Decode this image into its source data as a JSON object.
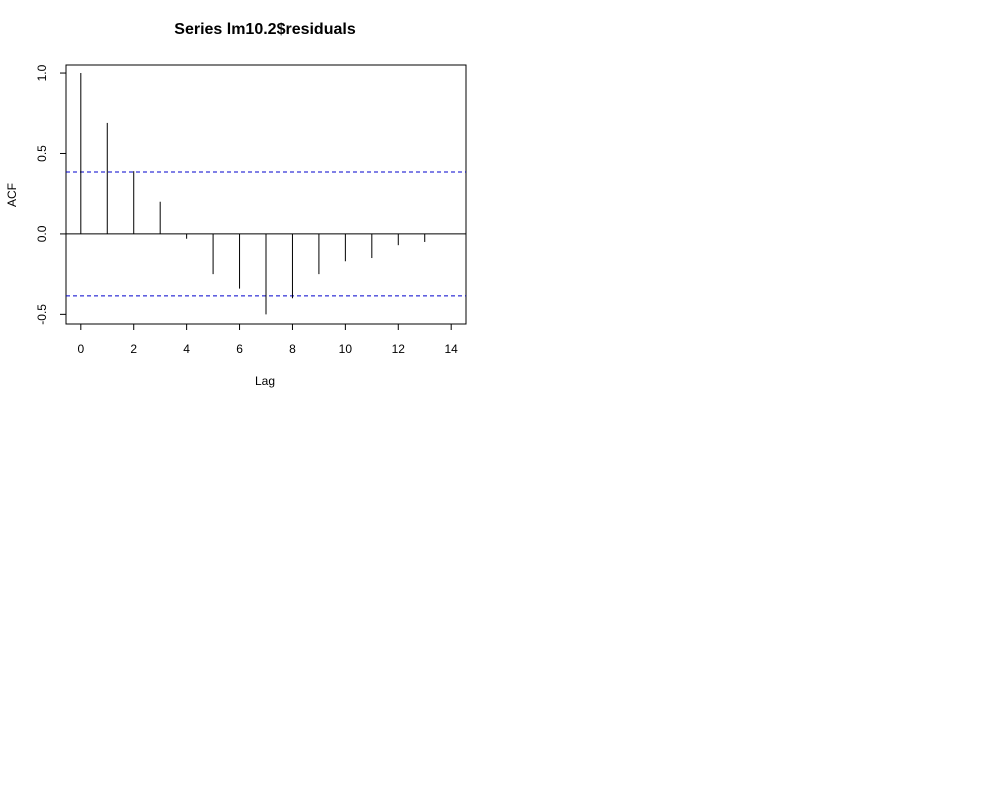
{
  "chart_data": {
    "type": "bar",
    "title": "Series  lm10.2$residuals",
    "xlabel": "Lag",
    "ylabel": "ACF",
    "x": [
      0,
      1,
      2,
      3,
      4,
      5,
      6,
      7,
      8,
      9,
      10,
      11,
      12,
      13
    ],
    "values": [
      1.0,
      0.69,
      0.39,
      0.2,
      -0.03,
      -0.25,
      -0.34,
      -0.5,
      -0.4,
      -0.25,
      -0.17,
      -0.15,
      -0.07,
      -0.05
    ],
    "xlim": [
      -0.56,
      14.56
    ],
    "ylim": [
      -0.56,
      1.05
    ],
    "xticks": [
      0,
      2,
      4,
      6,
      8,
      10,
      12,
      14
    ],
    "yticks": [
      -0.5,
      0.0,
      0.5,
      1.0
    ],
    "xtick_labels": [
      "0",
      "2",
      "4",
      "6",
      "8",
      "10",
      "12",
      "14"
    ],
    "ytick_labels": [
      "-0.5",
      "0.0",
      "0.5",
      "1.0"
    ],
    "confidence_bound": 0.385,
    "confidence_line_color": "#0000cc",
    "zero_line": true,
    "grid": false,
    "legend": "none"
  }
}
